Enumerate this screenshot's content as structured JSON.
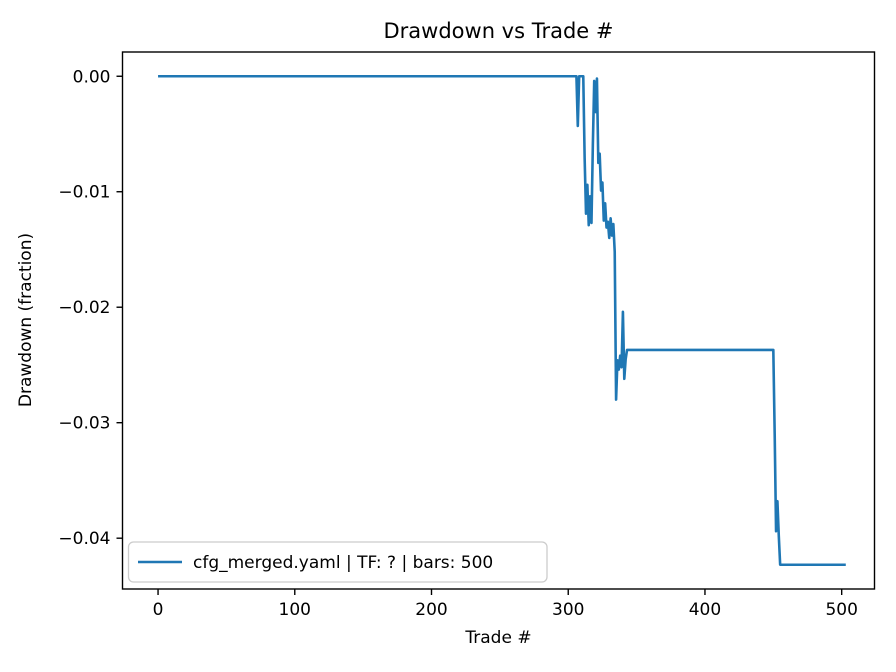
{
  "figure": {
    "background": "#ffffff",
    "text_color": "#000000",
    "spine_color": "#000000"
  },
  "chart_data": {
    "type": "line",
    "title": "Drawdown vs Trade #",
    "xlabel": "Trade #",
    "ylabel": "Drawdown (fraction)",
    "xlim": [
      -26,
      524
    ],
    "ylim": [
      -0.0444,
      0.0021
    ],
    "xticks": [
      0,
      100,
      200,
      300,
      400,
      500
    ],
    "xtick_labels": [
      "0",
      "100",
      "200",
      "300",
      "400",
      "500"
    ],
    "yticks": [
      0.0,
      -0.01,
      -0.02,
      -0.03,
      -0.04
    ],
    "ytick_labels": [
      "0.00",
      "−0.01",
      "−0.02",
      "−0.03",
      "−0.04"
    ],
    "grid": false,
    "legend": {
      "position": "lower left",
      "entries": [
        {
          "label": "cfg_merged.yaml | TF: ? | bars: 500",
          "color": "#1f77b4"
        }
      ]
    },
    "series": [
      {
        "name": "cfg_merged.yaml | TF: ? | bars: 500",
        "color": "#1f77b4",
        "points": [
          [
            0,
            0.0
          ],
          [
            306,
            0.0
          ],
          [
            307,
            -0.0043
          ],
          [
            308,
            0.0
          ],
          [
            311,
            0.0
          ],
          [
            312,
            -0.0071
          ],
          [
            313,
            -0.0119
          ],
          [
            314,
            -0.0094
          ],
          [
            315,
            -0.0129
          ],
          [
            316,
            -0.0104
          ],
          [
            317,
            -0.0127
          ],
          [
            318,
            -0.006
          ],
          [
            319,
            -0.0004
          ],
          [
            320,
            -0.0031
          ],
          [
            321,
            -0.0002
          ],
          [
            322,
            -0.0075
          ],
          [
            323,
            -0.0067
          ],
          [
            324,
            -0.0099
          ],
          [
            325,
            -0.0092
          ],
          [
            326,
            -0.0125
          ],
          [
            327,
            -0.011
          ],
          [
            328,
            -0.0131
          ],
          [
            329,
            -0.0126
          ],
          [
            330,
            -0.014
          ],
          [
            331,
            -0.0123
          ],
          [
            332,
            -0.0138
          ],
          [
            333,
            -0.0128
          ],
          [
            334,
            -0.0152
          ],
          [
            335,
            -0.028
          ],
          [
            336,
            -0.0246
          ],
          [
            337,
            -0.0254
          ],
          [
            338,
            -0.0242
          ],
          [
            339,
            -0.0252
          ],
          [
            340,
            -0.0204
          ],
          [
            341,
            -0.0262
          ],
          [
            342,
            -0.0245
          ],
          [
            343,
            -0.0237
          ],
          [
            450,
            -0.0237
          ],
          [
            451,
            -0.031
          ],
          [
            452,
            -0.0394
          ],
          [
            453,
            -0.0368
          ],
          [
            454,
            -0.0398
          ],
          [
            455,
            -0.0423
          ],
          [
            503,
            -0.0423
          ]
        ]
      }
    ]
  }
}
